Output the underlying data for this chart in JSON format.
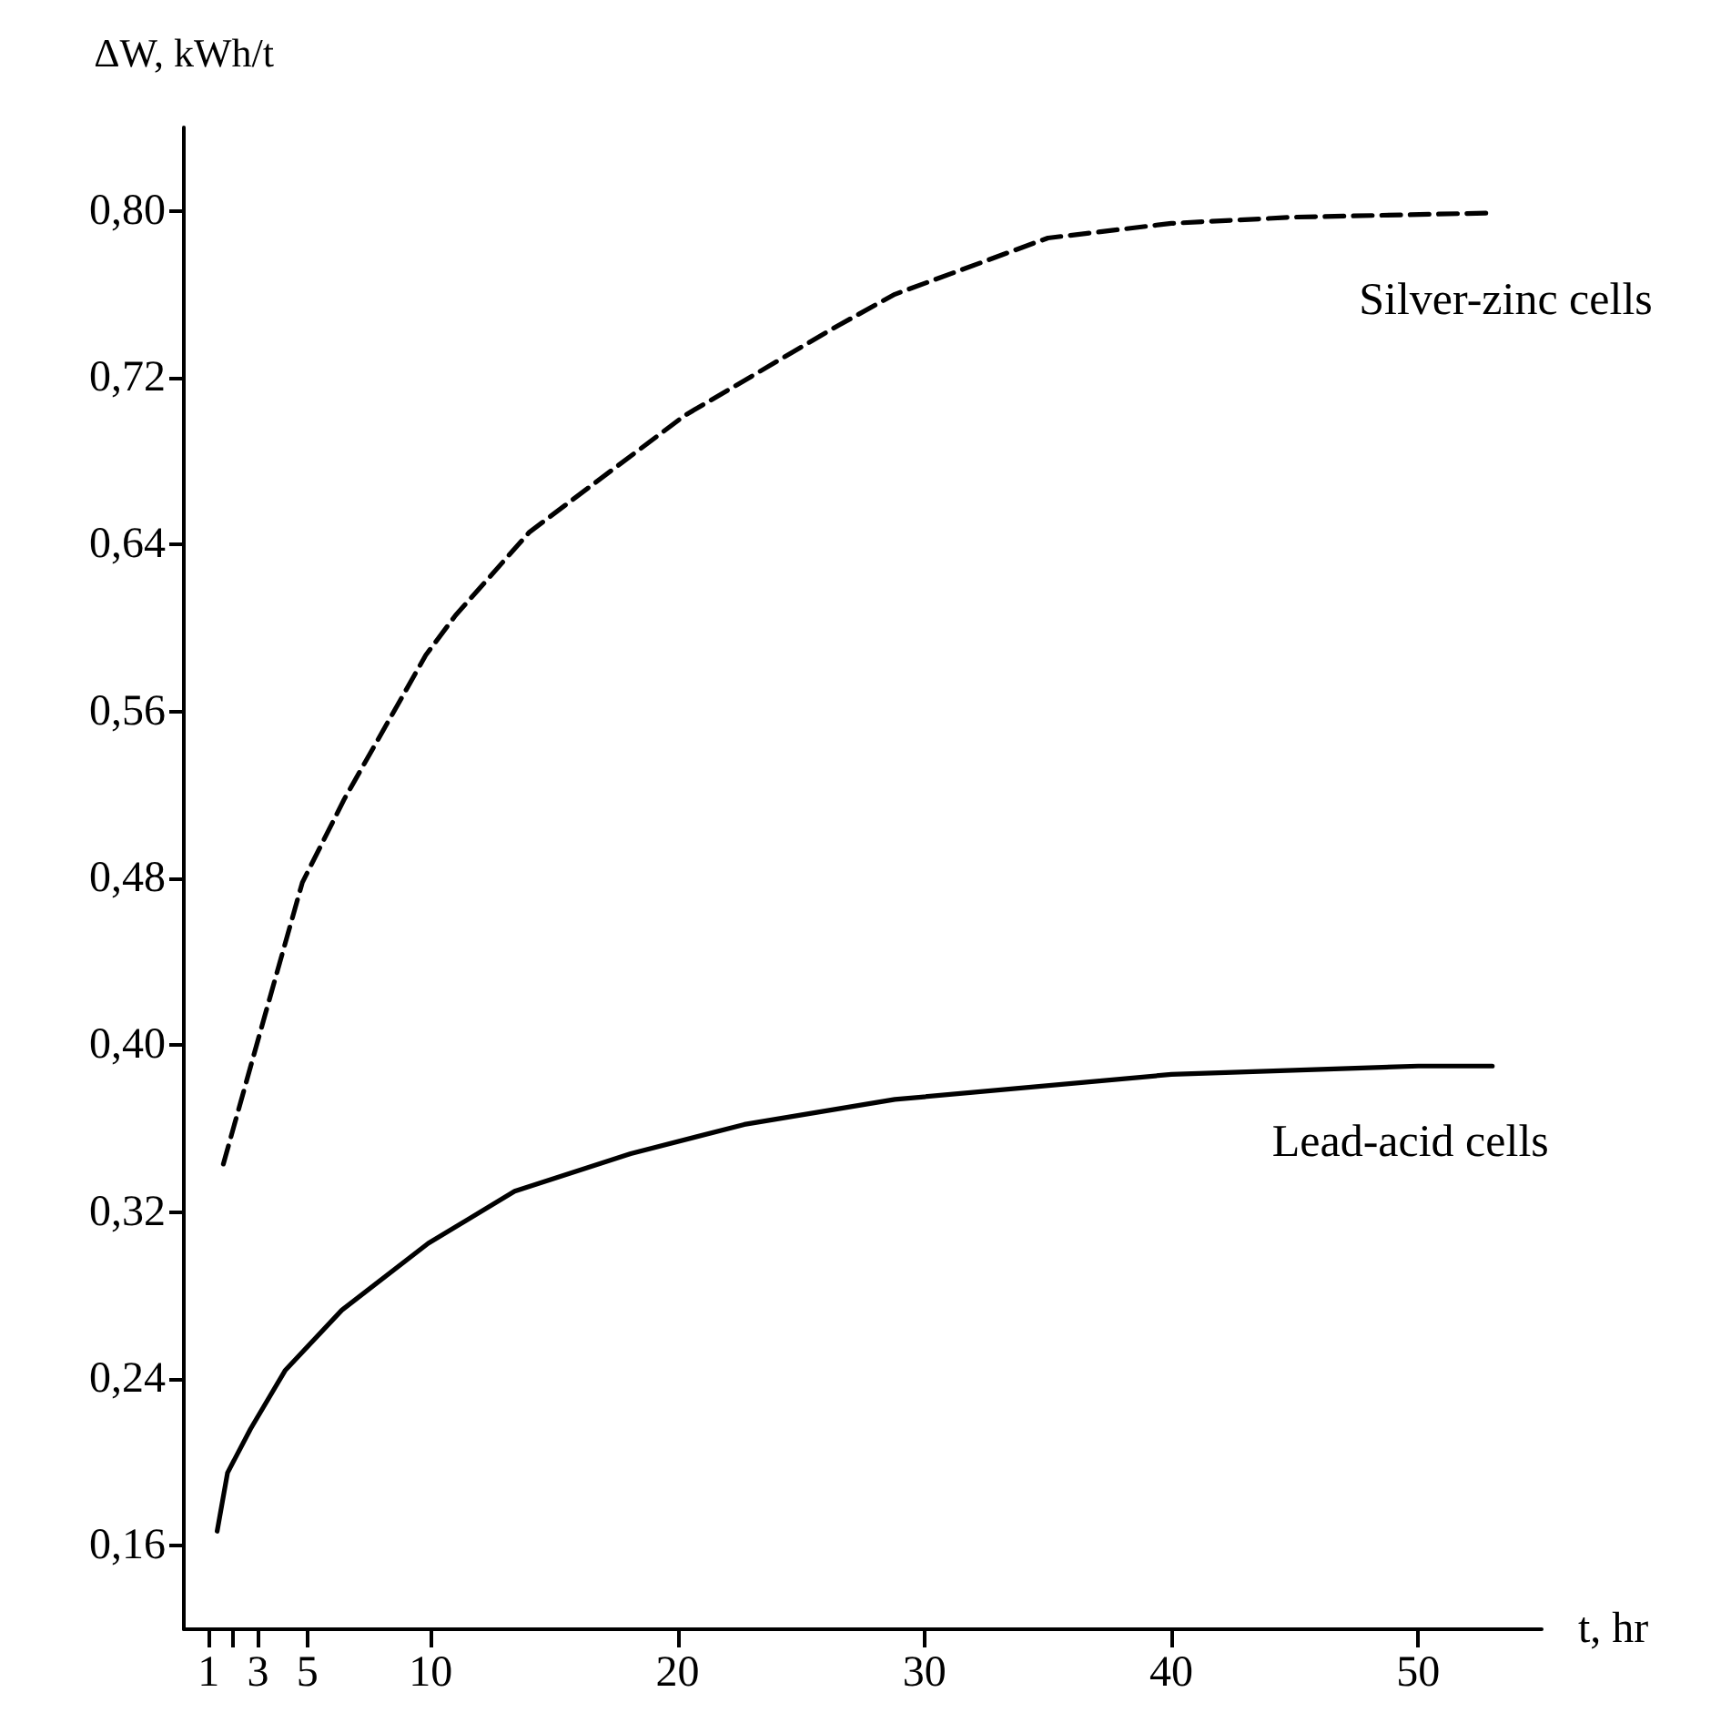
{
  "chart_data": {
    "type": "line",
    "xlabel": "t, hr",
    "ylabel": "ΔW, kWh/t",
    "xlim": [
      0,
      55
    ],
    "ylim": [
      0.12,
      0.84
    ],
    "xticks": [
      1,
      {
        "value": 2,
        "label": null
      },
      3,
      5,
      10,
      20,
      30,
      40,
      50
    ],
    "yticks": [
      {
        "value": 0.16,
        "label": "0,16"
      },
      {
        "value": 0.24,
        "label": "0,24"
      },
      {
        "value": 0.32,
        "label": "0,32"
      },
      {
        "value": 0.4,
        "label": "0,40"
      },
      {
        "value": 0.48,
        "label": "0,48"
      },
      {
        "value": 0.56,
        "label": "0,56"
      },
      {
        "value": 0.64,
        "label": "0,64"
      },
      {
        "value": 0.72,
        "label": "0,72"
      },
      {
        "value": 0.8,
        "label": "0,80"
      }
    ],
    "grid": false,
    "legend": false,
    "marker": "none",
    "series": [
      {
        "name": "Silver-zinc cells",
        "color": "#000000",
        "line_style": "dashed",
        "x": [
          1.6,
          3.3,
          4.8,
          6.5,
          9.8,
          11,
          14,
          20.3,
          26.5,
          28.8,
          35,
          40,
          45,
          53
        ],
        "values": [
          0.343,
          0.415,
          0.478,
          0.518,
          0.587,
          0.606,
          0.646,
          0.702,
          0.745,
          0.76,
          0.787,
          0.794,
          0.797,
          0.799
        ]
      },
      {
        "name": "Lead-acid cells",
        "color": "#000000",
        "line_style": "solid",
        "x": [
          1.35,
          1.77,
          2.7,
          4.1,
          6.4,
          9.9,
          13.4,
          18.1,
          22.7,
          28.8,
          40,
          50,
          53
        ],
        "values": [
          0.167,
          0.195,
          0.216,
          0.244,
          0.273,
          0.305,
          0.33,
          0.348,
          0.362,
          0.374,
          0.386,
          0.39,
          0.39
        ]
      }
    ]
  }
}
